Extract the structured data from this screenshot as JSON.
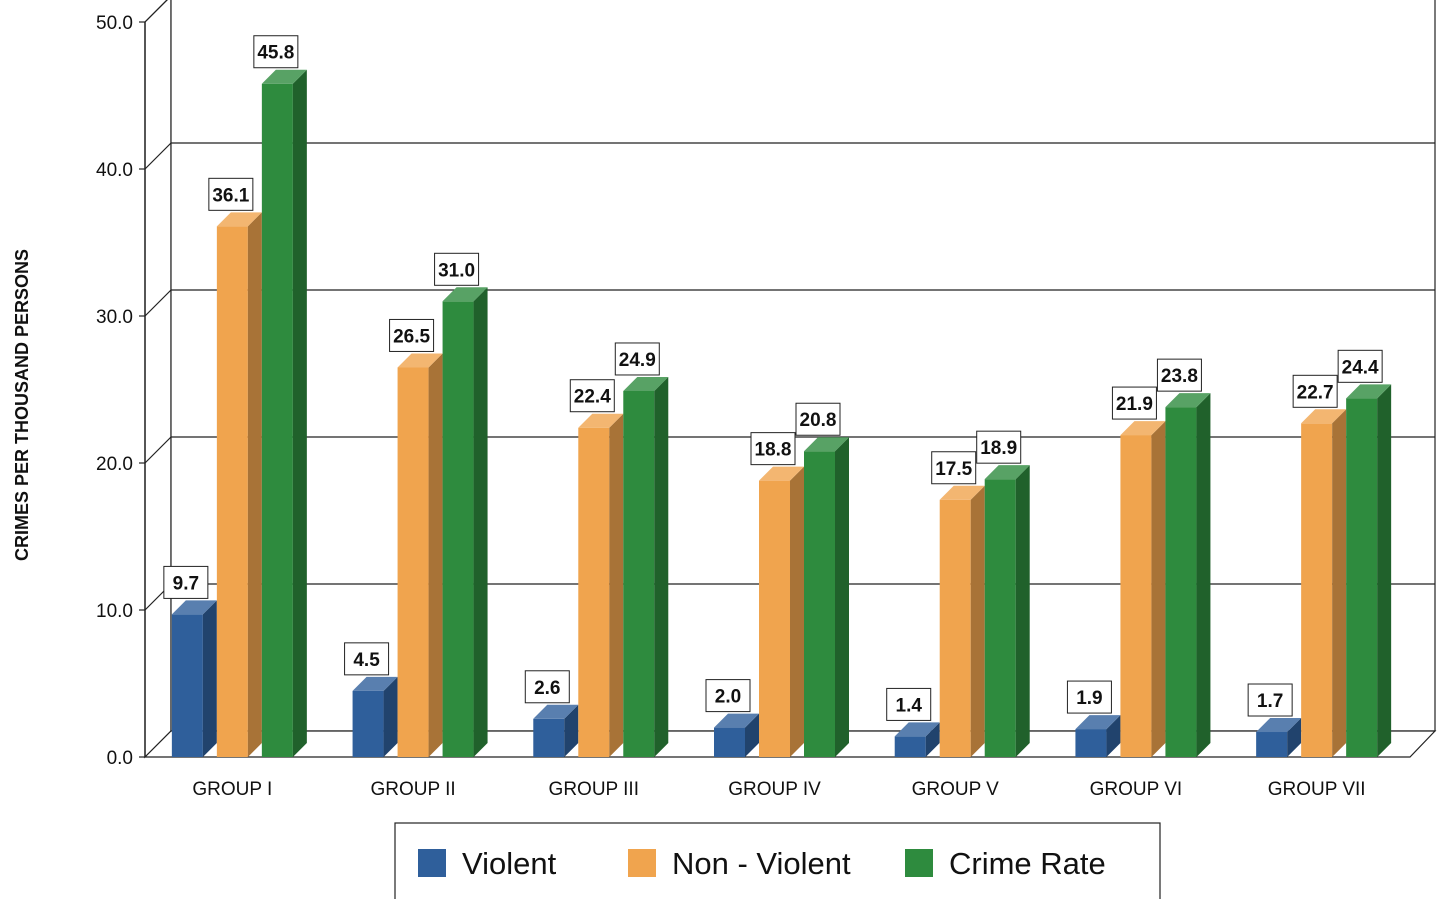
{
  "chart_data": {
    "type": "bar",
    "style": "3d-clustered-column",
    "ylabel": "CRIMES PER THOUSAND PERSONS",
    "xlabel": "",
    "ylim": [
      0,
      50
    ],
    "yticks": [
      "0.0",
      "10.0",
      "20.0",
      "30.0",
      "40.0",
      "50.0"
    ],
    "grid": true,
    "legend_position": "bottom",
    "categories": [
      "GROUP I",
      "GROUP II",
      "GROUP III",
      "GROUP IV",
      "GROUP V",
      "GROUP VI",
      "GROUP VII"
    ],
    "series": [
      {
        "name": "Violent",
        "color": "#2f5f9b",
        "values": [
          9.7,
          4.5,
          2.6,
          2.0,
          1.4,
          1.9,
          1.7
        ],
        "labels": [
          "9.7",
          "4.5",
          "2.6",
          "2.0",
          "1.4",
          "1.9",
          "1.7"
        ]
      },
      {
        "name": "Non - Violent",
        "color": "#f0a44e",
        "values": [
          36.1,
          26.5,
          22.4,
          18.8,
          17.5,
          21.9,
          22.7
        ],
        "labels": [
          "36.1",
          "26.5",
          "22.4",
          "18.8",
          "17.5",
          "21.9",
          "22.7"
        ]
      },
      {
        "name": "Crime Rate",
        "color": "#2e8b3e",
        "values": [
          45.8,
          31.0,
          24.9,
          20.8,
          18.9,
          23.8,
          24.4
        ],
        "labels": [
          "45.8",
          "31.0",
          "24.9",
          "20.8",
          "18.9",
          "23.8",
          "24.4"
        ]
      }
    ]
  }
}
